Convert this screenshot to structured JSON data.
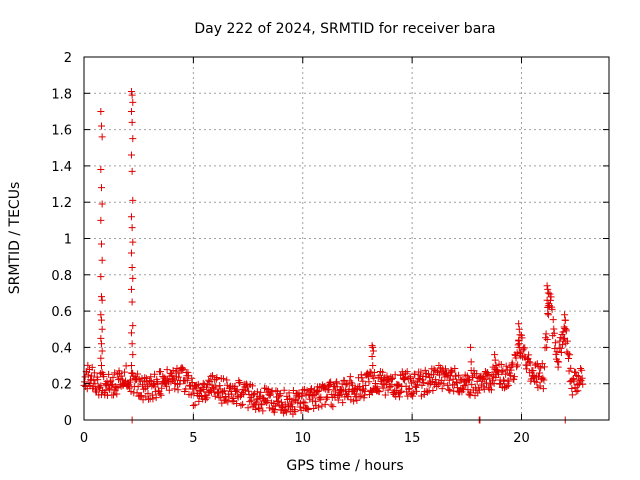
{
  "chart_data": {
    "type": "scatter",
    "title": "Day 222 of 2024, SRMTID for receiver bara",
    "xlabel": "GPS time / hours",
    "ylabel": "SRMTID / TECUs",
    "xlim": [
      0,
      24
    ],
    "ylim": [
      0,
      2
    ],
    "xticks": [
      0,
      5,
      10,
      15,
      20
    ],
    "xtick_labels": [
      "0",
      "5",
      "10",
      "15",
      "20"
    ],
    "yticks": [
      0,
      0.2,
      0.4,
      0.6,
      0.8,
      1,
      1.2,
      1.4,
      1.6,
      1.8,
      2
    ],
    "ytick_labels": [
      "0",
      "0.2",
      "0.4",
      "0.6",
      "0.8",
      "1",
      "1.2",
      "1.4",
      "1.6",
      "1.8",
      "2"
    ],
    "grid": true,
    "marker": "+",
    "color": "#e00000",
    "series": [
      {
        "name": "bara",
        "profile": [
          [
            0.0,
            0.25
          ],
          [
            0.5,
            0.22
          ],
          [
            1.0,
            0.18
          ],
          [
            1.5,
            0.2
          ],
          [
            2.0,
            0.24
          ],
          [
            2.5,
            0.18
          ],
          [
            3.0,
            0.18
          ],
          [
            3.5,
            0.2
          ],
          [
            4.0,
            0.22
          ],
          [
            4.5,
            0.24
          ],
          [
            5.0,
            0.15
          ],
          [
            5.5,
            0.16
          ],
          [
            6.0,
            0.18
          ],
          [
            6.5,
            0.15
          ],
          [
            7.0,
            0.16
          ],
          [
            7.5,
            0.13
          ],
          [
            8.0,
            0.12
          ],
          [
            8.5,
            0.11
          ],
          [
            9.0,
            0.1
          ],
          [
            9.5,
            0.1
          ],
          [
            10.0,
            0.12
          ],
          [
            10.5,
            0.13
          ],
          [
            11.0,
            0.14
          ],
          [
            11.5,
            0.14
          ],
          [
            12.0,
            0.17
          ],
          [
            12.5,
            0.17
          ],
          [
            13.0,
            0.2
          ],
          [
            13.5,
            0.22
          ],
          [
            14.0,
            0.18
          ],
          [
            14.5,
            0.2
          ],
          [
            15.0,
            0.2
          ],
          [
            15.5,
            0.2
          ],
          [
            16.0,
            0.23
          ],
          [
            16.5,
            0.24
          ],
          [
            17.0,
            0.22
          ],
          [
            17.5,
            0.21
          ],
          [
            18.0,
            0.2
          ],
          [
            18.5,
            0.22
          ],
          [
            19.0,
            0.24
          ],
          [
            19.5,
            0.24
          ],
          [
            20.0,
            0.42
          ],
          [
            20.5,
            0.25
          ],
          [
            21.0,
            0.24
          ],
          [
            21.3,
            0.68
          ],
          [
            21.6,
            0.3
          ],
          [
            22.0,
            0.5
          ],
          [
            22.3,
            0.2
          ],
          [
            22.8,
            0.22
          ]
        ],
        "noise_amplitude": 0.07,
        "step_hours": 0.025,
        "spikes": [
          {
            "x": 0.8,
            "values": [
              1.7,
              1.62,
              1.56,
              1.38,
              1.28,
              1.19,
              1.1,
              0.97,
              0.88,
              0.79,
              0.68,
              0.66,
              0.58,
              0.55,
              0.5,
              0.45,
              0.42,
              0.38,
              0.34,
              0.3
            ]
          },
          {
            "x": 2.2,
            "values": [
              1.81,
              1.79,
              1.75,
              1.7,
              1.64,
              1.55,
              1.46,
              1.37,
              1.21,
              1.12,
              1.06,
              0.98,
              0.92,
              0.84,
              0.78,
              0.72,
              0.65,
              0.52,
              0.48,
              0.42,
              0.36,
              0.3,
              0.0
            ]
          },
          {
            "x": 13.2,
            "values": [
              0.41,
              0.4,
              0.38,
              0.35,
              0.3
            ]
          },
          {
            "x": 17.7,
            "values": [
              0.4,
              0.32
            ]
          },
          {
            "x": 18.1,
            "values": [
              0.0,
              0.0
            ]
          },
          {
            "x": 18.8,
            "values": [
              0.36,
              0.33,
              0.3
            ]
          },
          {
            "x": 19.9,
            "values": [
              0.53,
              0.5,
              0.47,
              0.44,
              0.4
            ]
          },
          {
            "x": 21.2,
            "values": [
              0.74,
              0.72,
              0.7,
              0.66,
              0.62,
              0.58
            ]
          },
          {
            "x": 22.0,
            "values": [
              0.58,
              0.55,
              0.5,
              0.45,
              0.0
            ]
          }
        ]
      }
    ]
  }
}
